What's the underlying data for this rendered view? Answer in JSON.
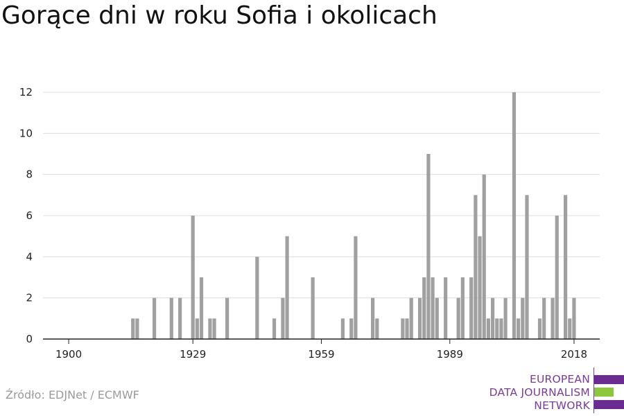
{
  "title": "Gorące dni w roku Sofia i okolicach",
  "source": "Źródło: EDJNet / ECMWF",
  "logo": {
    "lines": [
      "EUROPEAN",
      "DATA JOURNALISM",
      "NETWORK"
    ],
    "text_color": "#7a3b98",
    "bar_colors": [
      "#6b2c91",
      "#8dc63f",
      "#6b2c91"
    ]
  },
  "colors": {
    "bar": "#a0a0a0",
    "grid": "#dddddd",
    "axis": "#222222"
  },
  "chart_data": {
    "type": "bar",
    "title": "Gorące dni w roku Sofia i okolicach",
    "xlabel": "",
    "ylabel": "",
    "xlim": [
      1894,
      2024
    ],
    "ylim": [
      0,
      12
    ],
    "y_ticks": [
      0,
      2,
      4,
      6,
      8,
      10,
      12
    ],
    "x_ticks": [
      1900,
      1929,
      1959,
      1989,
      2018
    ],
    "grid": true,
    "x": [
      1915,
      1916,
      1920,
      1924,
      1926,
      1929,
      1930,
      1931,
      1933,
      1934,
      1937,
      1944,
      1948,
      1950,
      1951,
      1957,
      1964,
      1966,
      1967,
      1971,
      1972,
      1978,
      1979,
      1980,
      1982,
      1983,
      1984,
      1985,
      1986,
      1988,
      1991,
      1992,
      1994,
      1995,
      1996,
      1997,
      1998,
      1999,
      2000,
      2001,
      2002,
      2004,
      2005,
      2006,
      2007,
      2010,
      2011,
      2013,
      2014,
      2016,
      2017,
      2018
    ],
    "values": [
      1,
      1,
      2,
      2,
      2,
      6,
      1,
      3,
      1,
      1,
      2,
      4,
      1,
      2,
      5,
      3,
      1,
      1,
      5,
      2,
      1,
      1,
      1,
      2,
      2,
      3,
      9,
      3,
      2,
      3,
      2,
      3,
      3,
      7,
      5,
      8,
      1,
      2,
      1,
      1,
      2,
      12,
      1,
      2,
      7,
      1,
      2,
      2,
      6,
      7,
      1,
      2
    ]
  }
}
